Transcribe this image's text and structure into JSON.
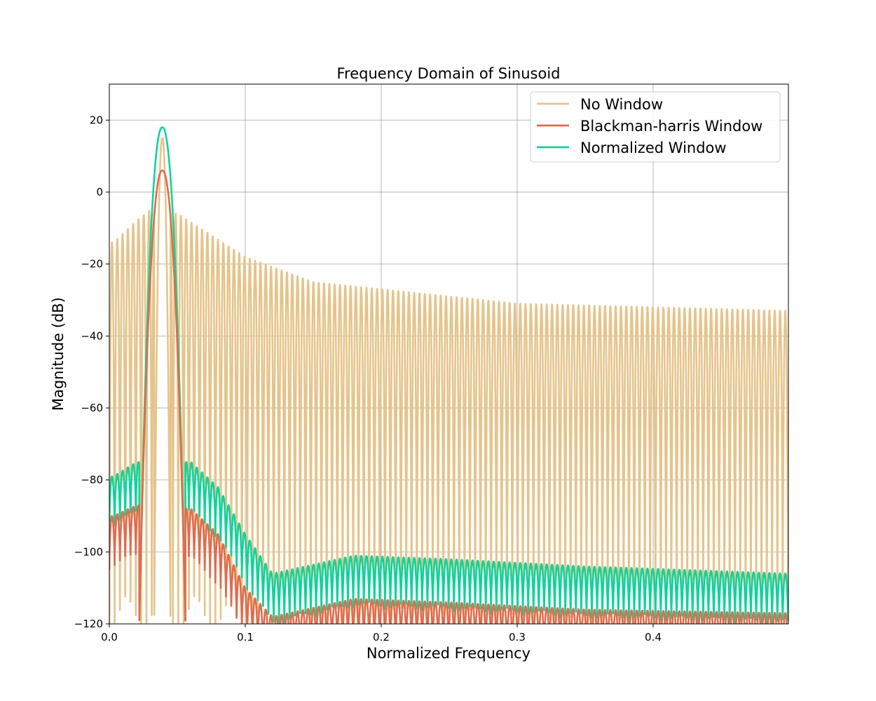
{
  "chart_data": {
    "type": "line",
    "title": "Frequency Domain of Sinusoid",
    "xlabel": "Normalized Frequency",
    "ylabel": "Magnitude (dB)",
    "xlim": [
      0.0,
      0.4995
    ],
    "ylim": [
      -120,
      30
    ],
    "xticks": [
      0.0,
      0.1,
      0.2,
      0.3,
      0.4
    ],
    "xtick_labels": [
      "0.0",
      "0.1",
      "0.2",
      "0.3",
      "0.4"
    ],
    "yticks": [
      -120,
      -100,
      -80,
      -60,
      -40,
      -20,
      0,
      20
    ],
    "ytick_labels": [
      "−120",
      "−100",
      "−80",
      "−60",
      "−40",
      "−20",
      "0",
      "20"
    ],
    "grid": true,
    "legend_position": "top-right",
    "series": [
      {
        "name": "No Window",
        "color": "#e5c48b",
        "description": "rectangular-window spectrum: peak ~15 dB at 0.039, sidelobe envelope decaying from ~-5 dB near peak to ~-33 dB at 0.5, nulls reaching -120",
        "peak_x": 0.039,
        "peak_y": 15,
        "envelope": [
          [
            0.003,
            -14
          ],
          [
            0.02,
            -8
          ],
          [
            0.03,
            -5
          ],
          [
            0.05,
            -6
          ],
          [
            0.1,
            -18
          ],
          [
            0.15,
            -25
          ],
          [
            0.2,
            -27
          ],
          [
            0.3,
            -31
          ],
          [
            0.4,
            -32
          ],
          [
            0.499,
            -33
          ]
        ],
        "lobe_spacing": 0.0039
      },
      {
        "name": "Blackman-harris Window",
        "color": "#e06c4c",
        "description": "windowed spectrum: peak ~6 dB, sidelobes ~-88 to -118 dB",
        "peak_x": 0.039,
        "peak_y": 6,
        "envelope": [
          [
            0.003,
            -90
          ],
          [
            0.02,
            -87
          ],
          [
            0.06,
            -88
          ],
          [
            0.08,
            -95
          ],
          [
            0.1,
            -110
          ],
          [
            0.12,
            -118
          ],
          [
            0.18,
            -113
          ],
          [
            0.25,
            -114
          ],
          [
            0.35,
            -116
          ],
          [
            0.499,
            -117
          ]
        ],
        "lobe_spacing": 0.0039
      },
      {
        "name": "Normalized Window",
        "color": "#10d39b",
        "description": "normalized windowed spectrum: peak ~18 dB, sidelobes ~-75 to -106 dB",
        "peak_x": 0.039,
        "peak_y": 18,
        "envelope": [
          [
            0.003,
            -79
          ],
          [
            0.02,
            -75
          ],
          [
            0.06,
            -75
          ],
          [
            0.08,
            -82
          ],
          [
            0.1,
            -95
          ],
          [
            0.12,
            -106
          ],
          [
            0.18,
            -101
          ],
          [
            0.25,
            -102
          ],
          [
            0.35,
            -104
          ],
          [
            0.499,
            -106
          ]
        ],
        "lobe_spacing": 0.0039
      }
    ]
  }
}
